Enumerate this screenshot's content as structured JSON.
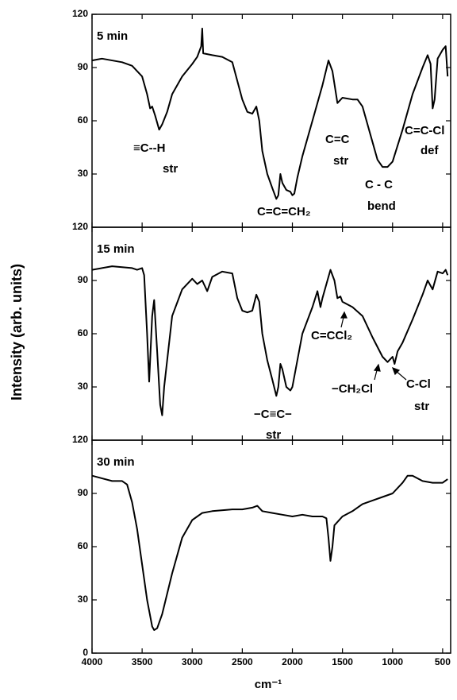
{
  "chart_data": [
    {
      "type": "line",
      "title": "5 min",
      "xlim": [
        4000,
        420
      ],
      "ylim": [
        0,
        120
      ],
      "yticks": [
        30,
        60,
        90,
        120
      ],
      "annotations": [
        "≡C--H",
        "str",
        "C=C=CH₂",
        "C=C",
        "str",
        "C - C",
        "bend",
        "C=C-Cl",
        "def"
      ],
      "x": [
        4000,
        3900,
        3700,
        3600,
        3500,
        3450,
        3420,
        3400,
        3370,
        3330,
        3300,
        3250,
        3200,
        3100,
        3000,
        2950,
        2910,
        2900,
        2890,
        2800,
        2700,
        2600,
        2500,
        2450,
        2400,
        2360,
        2330,
        2300,
        2250,
        2200,
        2160,
        2140,
        2120,
        2100,
        2060,
        2020,
        2000,
        1980,
        1950,
        1900,
        1800,
        1700,
        1640,
        1600,
        1550,
        1500,
        1400,
        1350,
        1300,
        1200,
        1150,
        1100,
        1050,
        1000,
        900,
        800,
        700,
        650,
        620,
        600,
        580,
        550,
        500,
        470,
        450
      ],
      "series": [
        {
          "color": "#000000",
          "values": [
            94,
            95,
            93,
            91,
            85,
            75,
            67,
            68,
            63,
            55,
            58,
            65,
            75,
            85,
            92,
            96,
            102,
            112,
            98,
            97,
            96,
            93,
            72,
            65,
            64,
            68,
            60,
            43,
            30,
            22,
            16,
            18,
            30,
            25,
            21,
            20,
            18,
            19,
            28,
            40,
            60,
            80,
            94,
            88,
            70,
            73,
            72,
            72,
            68,
            48,
            38,
            34,
            34,
            37,
            55,
            75,
            90,
            97,
            92,
            67,
            72,
            95,
            100,
            102,
            85
          ]
        }
      ]
    },
    {
      "type": "line",
      "title": "15 min",
      "ylabel": "Intensity (arb. units)",
      "xlim": [
        4000,
        420
      ],
      "ylim": [
        0,
        120
      ],
      "yticks": [
        30,
        60,
        90,
        120
      ],
      "annotations": [
        "C=CCl₂",
        "−CH₂Cl",
        "C-Cl",
        "str",
        "−C≡C−",
        "str"
      ],
      "x": [
        4000,
        3800,
        3600,
        3550,
        3500,
        3480,
        3450,
        3430,
        3400,
        3380,
        3350,
        3320,
        3300,
        3280,
        3200,
        3100,
        3000,
        2950,
        2900,
        2850,
        2800,
        2700,
        2600,
        2550,
        2500,
        2450,
        2400,
        2360,
        2330,
        2300,
        2250,
        2200,
        2160,
        2140,
        2120,
        2100,
        2060,
        2020,
        2000,
        1950,
        1900,
        1800,
        1750,
        1720,
        1700,
        1650,
        1620,
        1580,
        1550,
        1520,
        1500,
        1400,
        1300,
        1200,
        1100,
        1050,
        1000,
        980,
        950,
        900,
        800,
        700,
        650,
        600,
        550,
        500,
        470,
        450
      ],
      "series": [
        {
          "color": "#000000",
          "values": [
            96,
            98,
            97,
            96,
            97,
            93,
            60,
            33,
            70,
            79,
            50,
            20,
            14,
            30,
            70,
            85,
            91,
            88,
            90,
            84,
            92,
            95,
            94,
            80,
            73,
            72,
            73,
            82,
            78,
            60,
            45,
            34,
            25,
            30,
            43,
            40,
            30,
            28,
            30,
            45,
            60,
            75,
            84,
            75,
            80,
            90,
            96,
            90,
            80,
            81,
            78,
            75,
            70,
            58,
            47,
            44,
            47,
            43,
            50,
            55,
            68,
            82,
            90,
            85,
            95,
            94,
            96,
            93
          ]
        }
      ]
    },
    {
      "type": "line",
      "title": "30 min",
      "xlabel": "cm⁻¹",
      "xlim": [
        4000,
        420
      ],
      "ylim": [
        0,
        120
      ],
      "yticks": [
        0,
        30,
        60,
        90,
        120
      ],
      "xticks": [
        4000,
        3500,
        3000,
        2500,
        2000,
        1500,
        1000,
        500
      ],
      "x": [
        4000,
        3800,
        3700,
        3650,
        3600,
        3550,
        3500,
        3450,
        3400,
        3380,
        3350,
        3300,
        3200,
        3100,
        3000,
        2900,
        2800,
        2600,
        2500,
        2400,
        2350,
        2300,
        2200,
        2100,
        2000,
        1900,
        1800,
        1700,
        1660,
        1640,
        1620,
        1600,
        1580,
        1500,
        1400,
        1300,
        1200,
        1100,
        1000,
        900,
        850,
        800,
        700,
        600,
        500,
        450
      ],
      "series": [
        {
          "color": "#000000",
          "values": [
            100,
            97,
            97,
            95,
            85,
            70,
            50,
            30,
            15,
            13,
            14,
            22,
            45,
            65,
            75,
            79,
            80,
            81,
            81,
            82,
            83,
            80,
            79,
            78,
            77,
            78,
            77,
            77,
            76,
            65,
            52,
            60,
            72,
            77,
            80,
            84,
            86,
            88,
            90,
            96,
            100,
            100,
            97,
            96,
            96,
            98
          ]
        }
      ]
    }
  ]
}
